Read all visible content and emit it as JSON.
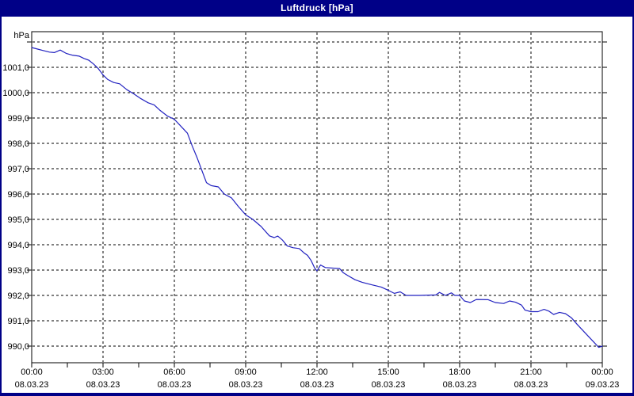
{
  "window": {
    "title": "Luftdruck [hPa]"
  },
  "colors": {
    "titlebar_bg": "#000087",
    "titlebar_text": "#ffffff",
    "frame": "#000087",
    "plot_background": "#ffffff",
    "grid": "#000000",
    "axis_text": "#000000",
    "line": "#2222c0"
  },
  "chart_data": {
    "type": "line",
    "title": "Luftdruck [hPa]",
    "grid": true,
    "legend_position": "none",
    "x_axis": {
      "unit": "time",
      "range_hours": [
        0,
        24
      ],
      "major_tick_interval_hours": 3,
      "minor_tick_interval_hours": 1.5,
      "ticks": [
        {
          "hour": 0,
          "time": "00:00",
          "date": "08.03.23"
        },
        {
          "hour": 3,
          "time": "03:00",
          "date": "08.03.23"
        },
        {
          "hour": 6,
          "time": "06:00",
          "date": "08.03.23"
        },
        {
          "hour": 9,
          "time": "09:00",
          "date": "08.03.23"
        },
        {
          "hour": 12,
          "time": "12:00",
          "date": "08.03.23"
        },
        {
          "hour": 15,
          "time": "15:00",
          "date": "08.03.23"
        },
        {
          "hour": 18,
          "time": "18:00",
          "date": "08.03.23"
        },
        {
          "hour": 21,
          "time": "21:00",
          "date": "08.03.23"
        },
        {
          "hour": 24,
          "time": "00:00",
          "date": "09.03.23"
        }
      ]
    },
    "y_axis": {
      "unit": "hPa",
      "ylim": [
        989.3,
        1002.4
      ],
      "gridline_values": [
        1002,
        1001,
        1000,
        999,
        998,
        997,
        996,
        995,
        994,
        993,
        992,
        991,
        990
      ],
      "tick_labels": [
        {
          "value": 1001,
          "label": "1001,0"
        },
        {
          "value": 1000,
          "label": "1000,0"
        },
        {
          "value": 999,
          "label": "999,0"
        },
        {
          "value": 998,
          "label": "998,0"
        },
        {
          "value": 997,
          "label": "997,0"
        },
        {
          "value": 996,
          "label": "996,0"
        },
        {
          "value": 995,
          "label": "995,0"
        },
        {
          "value": 994,
          "label": "994,0"
        },
        {
          "value": 993,
          "label": "993,0"
        },
        {
          "value": 992,
          "label": "992,0"
        },
        {
          "value": 991,
          "label": "991,0"
        },
        {
          "value": 990,
          "label": "990,0"
        }
      ]
    },
    "series": [
      {
        "name": "Luftdruck",
        "color": "#2222c0",
        "points": [
          [
            0,
            1001.78
          ],
          [
            0.25,
            1001.72
          ],
          [
            0.5,
            1001.66
          ],
          [
            0.75,
            1001.6
          ],
          [
            0.95,
            1001.58
          ],
          [
            1.2,
            1001.68
          ],
          [
            1.45,
            1001.55
          ],
          [
            1.7,
            1001.48
          ],
          [
            2.0,
            1001.44
          ],
          [
            2.2,
            1001.35
          ],
          [
            2.4,
            1001.28
          ],
          [
            2.6,
            1001.13
          ],
          [
            2.8,
            1000.95
          ],
          [
            3.0,
            1000.7
          ],
          [
            3.2,
            1000.52
          ],
          [
            3.45,
            1000.4
          ],
          [
            3.7,
            1000.35
          ],
          [
            4.0,
            1000.12
          ],
          [
            4.3,
            999.95
          ],
          [
            4.6,
            999.76
          ],
          [
            4.9,
            999.6
          ],
          [
            5.15,
            999.52
          ],
          [
            5.4,
            999.3
          ],
          [
            5.7,
            999.08
          ],
          [
            6.0,
            998.95
          ],
          [
            6.3,
            998.65
          ],
          [
            6.55,
            998.4
          ],
          [
            6.75,
            997.9
          ],
          [
            6.95,
            997.45
          ],
          [
            7.15,
            996.95
          ],
          [
            7.35,
            996.45
          ],
          [
            7.55,
            996.33
          ],
          [
            7.85,
            996.28
          ],
          [
            8.1,
            996.0
          ],
          [
            8.4,
            995.85
          ],
          [
            8.7,
            995.5
          ],
          [
            9.0,
            995.18
          ],
          [
            9.3,
            995.0
          ],
          [
            9.65,
            994.72
          ],
          [
            10.0,
            994.35
          ],
          [
            10.2,
            994.28
          ],
          [
            10.35,
            994.34
          ],
          [
            10.55,
            994.18
          ],
          [
            10.75,
            993.95
          ],
          [
            11.0,
            993.88
          ],
          [
            11.25,
            993.85
          ],
          [
            11.45,
            993.68
          ],
          [
            11.6,
            993.58
          ],
          [
            11.75,
            993.38
          ],
          [
            11.9,
            993.08
          ],
          [
            12.0,
            992.97
          ],
          [
            12.15,
            993.2
          ],
          [
            12.35,
            993.1
          ],
          [
            12.95,
            993.06
          ],
          [
            13.1,
            992.9
          ],
          [
            13.3,
            992.78
          ],
          [
            13.6,
            992.62
          ],
          [
            13.9,
            992.52
          ],
          [
            14.3,
            992.42
          ],
          [
            14.7,
            992.33
          ],
          [
            15.0,
            992.2
          ],
          [
            15.25,
            992.08
          ],
          [
            15.5,
            992.14
          ],
          [
            15.75,
            992.0
          ],
          [
            16.3,
            992.0
          ],
          [
            17.0,
            992.02
          ],
          [
            17.15,
            992.12
          ],
          [
            17.4,
            992.0
          ],
          [
            17.65,
            992.1
          ],
          [
            17.8,
            992.0
          ],
          [
            18.0,
            992.0
          ],
          [
            18.2,
            991.78
          ],
          [
            18.45,
            991.72
          ],
          [
            18.7,
            991.84
          ],
          [
            19.2,
            991.83
          ],
          [
            19.5,
            991.72
          ],
          [
            19.85,
            991.68
          ],
          [
            20.1,
            991.78
          ],
          [
            20.35,
            991.73
          ],
          [
            20.6,
            991.62
          ],
          [
            20.75,
            991.42
          ],
          [
            21.0,
            991.36
          ],
          [
            21.3,
            991.36
          ],
          [
            21.55,
            991.45
          ],
          [
            21.75,
            991.38
          ],
          [
            21.95,
            991.25
          ],
          [
            22.2,
            991.33
          ],
          [
            22.45,
            991.28
          ],
          [
            22.7,
            991.12
          ],
          [
            22.95,
            990.85
          ],
          [
            23.2,
            990.6
          ],
          [
            23.45,
            990.35
          ],
          [
            23.65,
            990.15
          ],
          [
            23.85,
            989.95
          ],
          [
            24.0,
            990.0
          ]
        ]
      }
    ]
  }
}
